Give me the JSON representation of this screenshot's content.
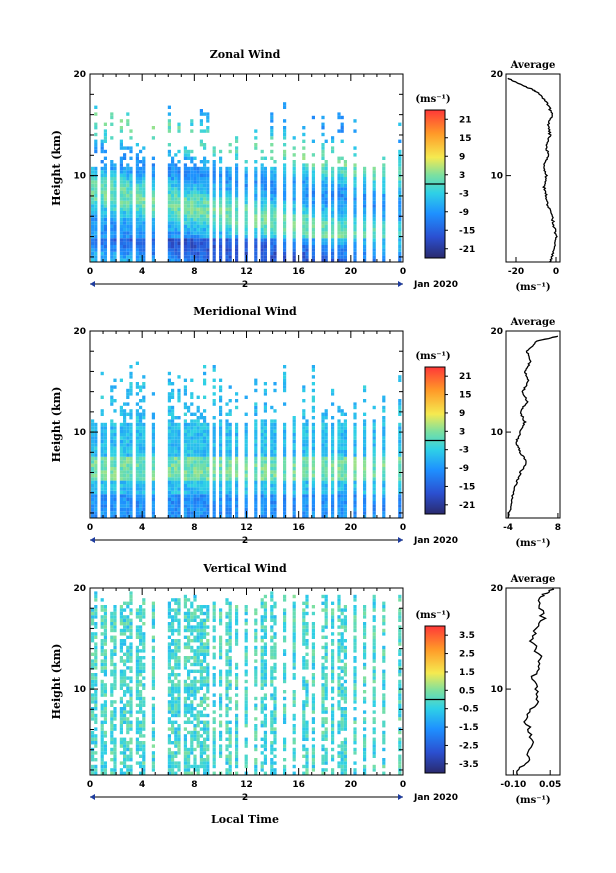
{
  "figure": {
    "x_label": "Local Time",
    "date_label": "Jan 2020",
    "day_label": "2"
  },
  "chart_data": [
    {
      "type": "heatmap",
      "title": "Zonal Wind",
      "ylabel": "Height (km)",
      "xlim": [
        0,
        24
      ],
      "ylim": [
        1.5,
        20
      ],
      "x_ticks": [
        "0",
        "4",
        "8",
        "12",
        "16",
        "20",
        "0"
      ],
      "y_ticks": [
        "10",
        "20"
      ],
      "colorbar": {
        "unit": "(ms⁻¹)",
        "ticks": [
          "21",
          "15",
          "9",
          "3",
          "-3",
          "-9",
          "-15",
          "-21"
        ],
        "range": [
          -24,
          24
        ]
      },
      "profile": {
        "title": "Average",
        "xlabel": "(ms⁻¹)",
        "x_ticks": [
          "-20",
          "0"
        ],
        "xlim": [
          -25,
          2
        ],
        "y_ticks": [
          "10",
          "20"
        ],
        "points": [
          [
            -3,
            1.5
          ],
          [
            -2,
            2
          ],
          [
            -1,
            3
          ],
          [
            0,
            4
          ],
          [
            -1,
            5
          ],
          [
            -2,
            6
          ],
          [
            -4,
            7
          ],
          [
            -5,
            8
          ],
          [
            -6,
            9
          ],
          [
            -5,
            10
          ],
          [
            -6,
            11
          ],
          [
            -4,
            12
          ],
          [
            -5,
            13
          ],
          [
            -3,
            14
          ],
          [
            -4,
            15
          ],
          [
            -2,
            16
          ],
          [
            -4,
            17
          ],
          [
            -8,
            18
          ],
          [
            -12,
            18.5
          ],
          [
            -18,
            19
          ],
          [
            -24,
            19.6
          ]
        ]
      }
    },
    {
      "type": "heatmap",
      "title": "Meridional Wind",
      "ylabel": "Height (km)",
      "xlim": [
        0,
        24
      ],
      "ylim": [
        1.5,
        20
      ],
      "x_ticks": [
        "0",
        "4",
        "8",
        "12",
        "16",
        "20",
        "0"
      ],
      "y_ticks": [
        "10",
        "20"
      ],
      "colorbar": {
        "unit": "(ms⁻¹)",
        "ticks": [
          "21",
          "15",
          "9",
          "3",
          "-3",
          "-9",
          "-15",
          "-21"
        ],
        "range": [
          -24,
          24
        ]
      },
      "profile": {
        "title": "Average",
        "xlabel": "(ms⁻¹)",
        "x_ticks": [
          "-4",
          "8"
        ],
        "xlim": [
          -4.5,
          8.5
        ],
        "y_ticks": [
          "10",
          "20"
        ],
        "points": [
          [
            -4,
            1.5
          ],
          [
            -3.5,
            2.5
          ],
          [
            -3,
            3.5
          ],
          [
            -2,
            5
          ],
          [
            -1,
            6
          ],
          [
            0.5,
            7
          ],
          [
            -1,
            8
          ],
          [
            -2,
            9
          ],
          [
            -1,
            10
          ],
          [
            0,
            11
          ],
          [
            -1,
            12
          ],
          [
            0.5,
            13
          ],
          [
            -0.5,
            14
          ],
          [
            1,
            15
          ],
          [
            0,
            16
          ],
          [
            1.5,
            17
          ],
          [
            0.5,
            18
          ],
          [
            3,
            19
          ],
          [
            8,
            19.5
          ]
        ]
      }
    },
    {
      "type": "heatmap",
      "title": "Vertical Wind",
      "ylabel": "Height (km)",
      "xlim": [
        0,
        24
      ],
      "ylim": [
        1.5,
        20
      ],
      "x_ticks": [
        "0",
        "4",
        "8",
        "12",
        "16",
        "20",
        "0"
      ],
      "y_ticks": [
        "10",
        "20"
      ],
      "colorbar": {
        "unit": "(ms⁻¹)",
        "ticks": [
          "3.5",
          "2.5",
          "1.5",
          "0.5",
          "-0.5",
          "-1.5",
          "-2.5",
          "-3.5"
        ],
        "range": [
          -4,
          4
        ]
      },
      "profile": {
        "title": "Average",
        "xlabel": "(ms⁻¹)",
        "x_ticks": [
          "-0.10",
          "0.05"
        ],
        "xlim": [
          -0.13,
          0.09
        ],
        "y_ticks": [
          "10",
          "20"
        ],
        "points": [
          [
            -0.09,
            1.5
          ],
          [
            -0.04,
            3
          ],
          [
            -0.02,
            5
          ],
          [
            -0.05,
            7
          ],
          [
            0.0,
            9
          ],
          [
            -0.02,
            11
          ],
          [
            0.01,
            13
          ],
          [
            -0.03,
            15
          ],
          [
            0.02,
            17
          ],
          [
            0.0,
            19
          ],
          [
            0.06,
            20
          ]
        ]
      }
    }
  ]
}
